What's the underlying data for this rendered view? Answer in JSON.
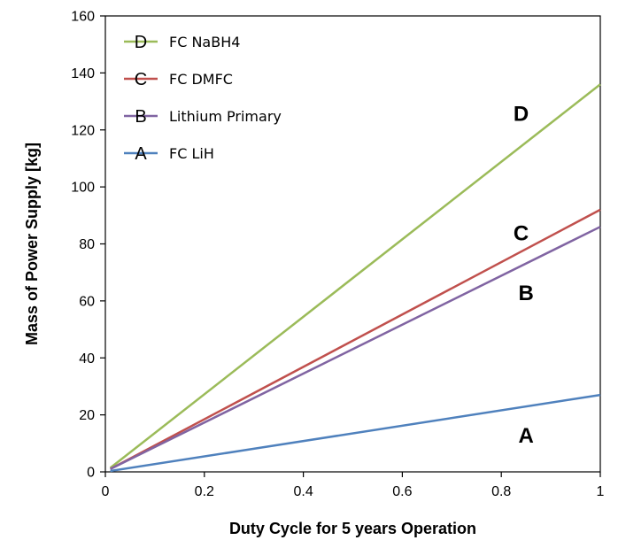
{
  "chart_data": {
    "type": "line",
    "title": "",
    "xlabel": "Duty Cycle for 5 years Operation",
    "ylabel": "Mass of Power Supply [kg]",
    "xlim": [
      0,
      1
    ],
    "ylim": [
      0,
      160
    ],
    "xticks": [
      0,
      0.2,
      0.4,
      0.6,
      0.8,
      1
    ],
    "xtick_labels": [
      "0",
      "0.2",
      "0.4",
      "0.6",
      "0.8",
      "1"
    ],
    "yticks": [
      0,
      20,
      40,
      60,
      80,
      100,
      120,
      140,
      160
    ],
    "ytick_labels": [
      "0",
      "20",
      "40",
      "60",
      "80",
      "100",
      "120",
      "140",
      "160"
    ],
    "grid": false,
    "legend_position": "top-left",
    "series": [
      {
        "name": "FC NaBH4",
        "marker": "D",
        "color": "#9BBB59",
        "x": [
          0.01,
          1
        ],
        "y": [
          1.4,
          136
        ],
        "label_at": [
          0.84,
          126
        ]
      },
      {
        "name": "FC DMFC",
        "marker": "C",
        "color": "#C0504D",
        "x": [
          0.01,
          1
        ],
        "y": [
          1.0,
          92
        ],
        "label_at": [
          0.84,
          84
        ]
      },
      {
        "name": "Lithium Primary",
        "marker": "B",
        "color": "#8064A2",
        "x": [
          0.01,
          1
        ],
        "y": [
          1.0,
          86
        ],
        "label_at": [
          0.85,
          63
        ]
      },
      {
        "name": "FC LiH",
        "marker": "A",
        "color": "#4F81BD",
        "x": [
          0.01,
          1
        ],
        "y": [
          0.3,
          27
        ],
        "label_at": [
          0.85,
          13
        ]
      }
    ]
  }
}
